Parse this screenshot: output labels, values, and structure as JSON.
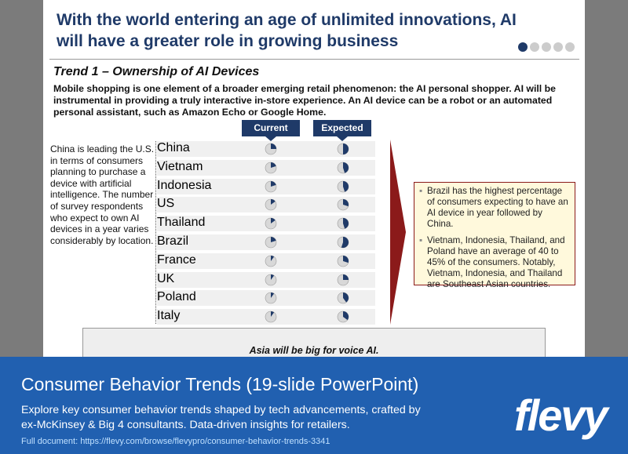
{
  "slide": {
    "title": "With the world entering an age of unlimited innovations, AI will have a greater role in growing business",
    "trend_heading": "Trend 1 – Ownership of AI Devices",
    "intro": "Mobile shopping is one element of a broader emerging retail phenomenon: the AI personal shopper. AI will be instrumental in providing a truly interactive in-store experience. An AI device can be a robot or an automated personal assistant, such as Amazon Echo or Google Home.",
    "side_note": "China is leading the U.S. in terms of consumers planning to purchase a device with artificial intelligence. The number of survey respondents who expect to own AI devices in a year varies considerably by location.",
    "columns": [
      "Current",
      "Expected"
    ],
    "rows": [
      {
        "country": "China",
        "current": 25,
        "expected": 50
      },
      {
        "country": "Vietnam",
        "current": 20,
        "expected": 45
      },
      {
        "country": "Indonesia",
        "current": 20,
        "expected": 45
      },
      {
        "country": "US",
        "current": 15,
        "expected": 30
      },
      {
        "country": "Thailand",
        "current": 15,
        "expected": 45
      },
      {
        "country": "Brazil",
        "current": 20,
        "expected": 55
      },
      {
        "country": "France",
        "current": 10,
        "expected": 30
      },
      {
        "country": "UK",
        "current": 10,
        "expected": 25
      },
      {
        "country": "Poland",
        "current": 10,
        "expected": 40
      },
      {
        "country": "Italy",
        "current": 10,
        "expected": 35
      }
    ],
    "callout": [
      "Brazil has the highest percentage of consumers expecting to have an AI device in year followed by China.",
      "Vietnam, Indonesia, Thailand, and Poland have an average of 40 to 45% of the consumers. Notably, Vietnam, Indonesia, and Thailand are Southeast Asian countries."
    ],
    "conclusion": "Asia will be big for voice AI."
  },
  "banner": {
    "title": "Consumer Behavior Trends",
    "subtitle": "(19-slide PowerPoint)",
    "description": "Explore key consumer behavior trends shaped by tech advancements, crafted by ex-McKinsey & Big 4 consultants. Data-driven insights for retailers.",
    "link": "Full document: https://flevy.com/browse/flevypro/consumer-behavior-trends-3341",
    "logo": "flevy"
  }
}
